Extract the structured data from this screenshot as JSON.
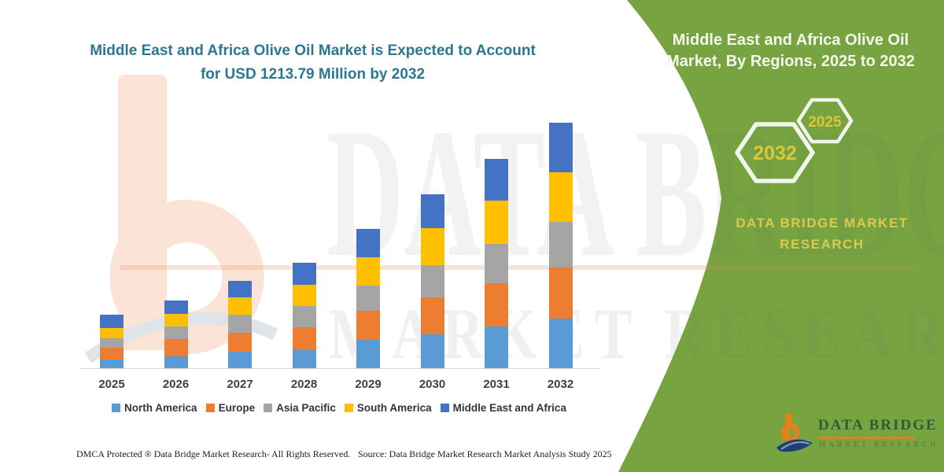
{
  "header": {
    "title_line1": "Middle East and Africa Olive Oil Market is Expected to Account",
    "title_line2": "for USD 1213.79 Million by 2032"
  },
  "side_panel": {
    "title_line1": "Middle East and Africa Olive Oil",
    "title_line2": "Market, By Regions, 2025 to 2032",
    "hexagons": [
      {
        "label": "2032"
      },
      {
        "label": "2025"
      }
    ],
    "brand_line1": "DATA BRIDGE MARKET",
    "brand_line2": "RESEARCH",
    "colors": {
      "background_green": "#77a440",
      "hexagon_outline": "#f2f5ec",
      "year_yellow": "#d9c83e",
      "brand_yellow": "#ddc94e"
    }
  },
  "watermark": {
    "line1": "DATA BRIDGE",
    "line2": "MARKET RESEARCH"
  },
  "logo": {
    "name": "DATA BRIDGE",
    "tagline": "MARKET RESEARCH",
    "colors": {
      "b_orange": "#e2821f",
      "swoosh_navy": "#1f3f77",
      "text_green": "#2d5c38"
    }
  },
  "footer": {
    "left": "DMCA Protected ® Data Bridge Market Research-  All Rights Reserved.",
    "right": "Source: Data Bridge Market Research  Market Analysis Study 2025"
  },
  "chart_data": {
    "type": "bar",
    "subtype": "stacked-vertical",
    "title": "Middle East and Africa Olive Oil Market, By Regions, 2025 to 2032",
    "unit": "USD Million",
    "categories": [
      "2025",
      "2026",
      "2027",
      "2028",
      "2029",
      "2030",
      "2031",
      "2032"
    ],
    "series": [
      {
        "name": "North America",
        "color": "#5B9BD5",
        "values": [
          43,
          58,
          82,
          89,
          140,
          167,
          206,
          245
        ]
      },
      {
        "name": "Europe",
        "color": "#ED7D31",
        "values": [
          58,
          86,
          93,
          113,
          144,
          183,
          214,
          253
        ]
      },
      {
        "name": "Asia Pacific",
        "color": "#A5A5A5",
        "values": [
          47,
          62,
          89,
          105,
          124,
          160,
          195,
          226
        ]
      },
      {
        "name": "South America",
        "color": "#FFC000",
        "values": [
          51,
          62,
          86,
          105,
          140,
          183,
          214,
          245
        ]
      },
      {
        "name": "Middle East and Africa",
        "color": "#4472C4",
        "values": [
          66,
          66,
          82,
          109,
          140,
          167,
          206,
          244.79
        ]
      }
    ],
    "totals_estimated": [
      265,
      334,
      432,
      521,
      688,
      860,
      1035,
      1213.79
    ],
    "highlight_value_2032": 1213.79,
    "xlabel": "",
    "ylabel": "",
    "y_axis_visible": false,
    "gridlines": false,
    "legend_position": "bottom"
  }
}
